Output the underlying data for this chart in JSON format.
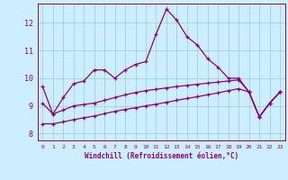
{
  "xlabel": "Windchill (Refroidissement éolien,°C)",
  "x_ticks": [
    0,
    1,
    2,
    3,
    4,
    5,
    6,
    7,
    8,
    9,
    10,
    11,
    12,
    13,
    14,
    15,
    16,
    17,
    18,
    19,
    20,
    21,
    22,
    23
  ],
  "ylim": [
    7.75,
    12.7
  ],
  "xlim": [
    -0.5,
    23.5
  ],
  "yticks": [
    8,
    9,
    10,
    11,
    12
  ],
  "bg_color": "#cceeff",
  "line_color": "#880088",
  "grid_color": "#99cccc",
  "line1_y": [
    9.7,
    8.7,
    9.3,
    9.8,
    9.9,
    10.3,
    10.3,
    10.0,
    10.3,
    10.5,
    10.6,
    11.6,
    12.5,
    12.1,
    11.5,
    11.2,
    10.7,
    10.4,
    10.0,
    10.0,
    9.5,
    8.6,
    9.1,
    9.5
  ],
  "line2_y": [
    9.1,
    8.7,
    8.85,
    9.0,
    9.05,
    9.1,
    9.2,
    9.3,
    9.4,
    9.48,
    9.55,
    9.6,
    9.65,
    9.7,
    9.74,
    9.78,
    9.82,
    9.86,
    9.9,
    9.94,
    9.5,
    8.6,
    9.1,
    9.5
  ],
  "line3_y": [
    8.35,
    8.35,
    8.42,
    8.5,
    8.57,
    8.63,
    8.72,
    8.8,
    8.87,
    8.93,
    9.0,
    9.06,
    9.13,
    9.2,
    9.27,
    9.33,
    9.4,
    9.47,
    9.55,
    9.62,
    9.5,
    8.6,
    9.1,
    9.5
  ]
}
